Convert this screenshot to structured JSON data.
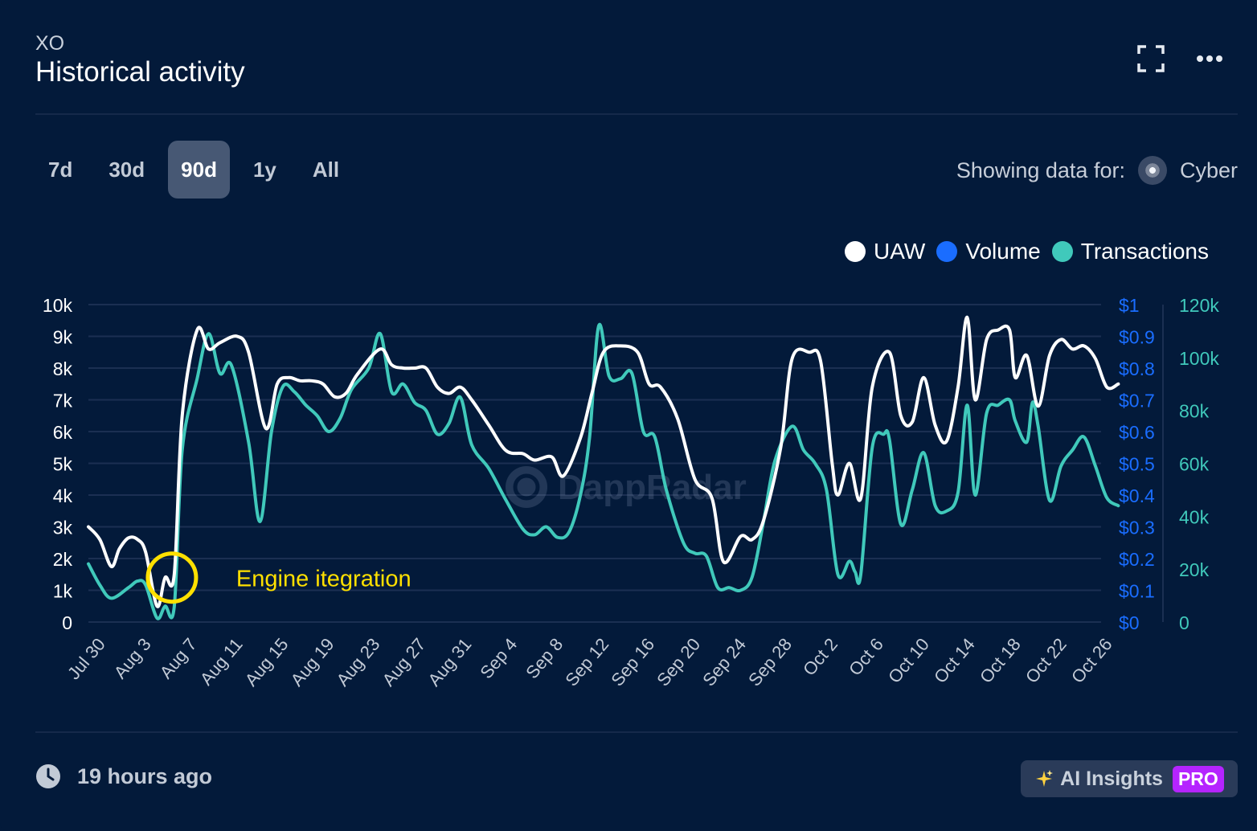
{
  "header": {
    "subtitle": "XO",
    "title": "Historical activity"
  },
  "icons": {
    "expand": "expand-icon",
    "more": "more-icon",
    "clock": "clock-icon",
    "sparkle": "sparkle-icon",
    "chain": "cyber-chain-icon"
  },
  "tabs": [
    "7d",
    "30d",
    "90d",
    "1y",
    "All"
  ],
  "active_tab": "90d",
  "showing": {
    "label": "Showing data for:",
    "chain": "Cyber"
  },
  "legend": [
    {
      "name": "UAW",
      "color": "#ffffff"
    },
    {
      "name": "Volume",
      "color": "#1a6dff"
    },
    {
      "name": "Transactions",
      "color": "#40c9bb"
    }
  ],
  "watermark": "DappRadar",
  "footer": {
    "updated": "19 hours ago",
    "ai_label": "AI Insights",
    "pro_badge": "PRO"
  },
  "chart_data": {
    "type": "line",
    "x_tick_labels": [
      "Jul 30",
      "Aug 3",
      "Aug 7",
      "Aug 11",
      "Aug 15",
      "Aug 19",
      "Aug 23",
      "Aug 27",
      "Aug 31",
      "Sep 4",
      "Sep 8",
      "Sep 12",
      "Sep 16",
      "Sep 20",
      "Sep 24",
      "Sep 28",
      "Oct 2",
      "Oct 6",
      "Oct 10",
      "Oct 14",
      "Oct 18",
      "Oct 22",
      "Oct 26"
    ],
    "x_range_days": [
      0,
      88.5
    ],
    "left_axis": {
      "ticks": [
        "0",
        "1k",
        "2k",
        "3k",
        "4k",
        "5k",
        "6k",
        "7k",
        "8k",
        "9k",
        "10k"
      ],
      "range": [
        0,
        10000
      ]
    },
    "right_axis_volume": {
      "ticks": [
        "$0",
        "$0.1",
        "$0.2",
        "$0.3",
        "$0.4",
        "$0.5",
        "$0.6",
        "$0.7",
        "$0.8",
        "$0.9",
        "$1"
      ],
      "range": [
        0,
        1
      ]
    },
    "right_axis_transactions": {
      "ticks": [
        "0",
        "20k",
        "40k",
        "60k",
        "80k",
        "100k",
        "120k"
      ],
      "range": [
        0,
        120000
      ]
    },
    "annotation": {
      "text": "Engine itegration",
      "at_day": 7.3,
      "at_value": 1400,
      "color": "#ffe000"
    },
    "series": [
      {
        "name": "UAW",
        "axis": "left",
        "color": "#ffffff",
        "points": [
          [
            0,
            3000
          ],
          [
            1,
            2600
          ],
          [
            2,
            1750
          ],
          [
            2.7,
            2300
          ],
          [
            3.5,
            2650
          ],
          [
            4.3,
            2600
          ],
          [
            5,
            2200
          ],
          [
            6,
            500
          ],
          [
            6.7,
            1400
          ],
          [
            7.5,
            1500
          ],
          [
            8.2,
            6500
          ],
          [
            9.5,
            9200
          ],
          [
            10.5,
            8600
          ],
          [
            11.5,
            8800
          ],
          [
            13,
            9000
          ],
          [
            14,
            8500
          ],
          [
            15.5,
            6100
          ],
          [
            16.5,
            7500
          ],
          [
            17.5,
            7700
          ],
          [
            18.5,
            7600
          ],
          [
            19.5,
            7600
          ],
          [
            20.5,
            7500
          ],
          [
            21.5,
            7100
          ],
          [
            22.5,
            7200
          ],
          [
            23.5,
            7800
          ],
          [
            25.5,
            8600
          ],
          [
            26.5,
            8100
          ],
          [
            27.5,
            8000
          ],
          [
            28.5,
            8000
          ],
          [
            29.5,
            8000
          ],
          [
            30.5,
            7400
          ],
          [
            31.5,
            7200
          ],
          [
            32.5,
            7400
          ],
          [
            33.5,
            7000
          ],
          [
            35,
            6200
          ],
          [
            36.5,
            5400
          ],
          [
            38,
            5300
          ],
          [
            39,
            5100
          ],
          [
            40.5,
            5200
          ],
          [
            41.5,
            4600
          ],
          [
            43,
            5800
          ],
          [
            44,
            7200
          ],
          [
            45,
            8500
          ],
          [
            46.5,
            8700
          ],
          [
            48,
            8500
          ],
          [
            49,
            7500
          ],
          [
            50,
            7400
          ],
          [
            51.5,
            6400
          ],
          [
            53,
            4500
          ],
          [
            54.5,
            3900
          ],
          [
            55.5,
            1900
          ],
          [
            57,
            2700
          ],
          [
            58,
            2600
          ],
          [
            59,
            3200
          ],
          [
            60.5,
            5500
          ],
          [
            61.5,
            8300
          ],
          [
            63,
            8500
          ],
          [
            64,
            8200
          ],
          [
            65,
            5000
          ],
          [
            65.5,
            4000
          ],
          [
            66.5,
            5000
          ],
          [
            67.5,
            3900
          ],
          [
            68.5,
            7400
          ],
          [
            70,
            8500
          ],
          [
            71,
            6500
          ],
          [
            72,
            6300
          ],
          [
            73,
            7700
          ],
          [
            74,
            6200
          ],
          [
            75,
            5700
          ],
          [
            76,
            7400
          ],
          [
            76.8,
            9600
          ],
          [
            77.5,
            7000
          ],
          [
            78.5,
            8900
          ],
          [
            79.5,
            9200
          ],
          [
            80.5,
            9200
          ],
          [
            81,
            7700
          ],
          [
            82,
            8400
          ],
          [
            83,
            6800
          ],
          [
            84,
            8400
          ],
          [
            85,
            8900
          ],
          [
            86,
            8600
          ],
          [
            87,
            8700
          ],
          [
            88,
            8300
          ],
          [
            89,
            7400
          ],
          [
            90,
            7500
          ]
        ]
      },
      {
        "name": "Transactions",
        "axis": "right_transactions",
        "color": "#40c9bb",
        "points": [
          [
            0,
            22000
          ],
          [
            1,
            14000
          ],
          [
            2,
            9000
          ],
          [
            3.5,
            13000
          ],
          [
            4.3,
            15500
          ],
          [
            5,
            14000
          ],
          [
            6,
            1500
          ],
          [
            6.7,
            6000
          ],
          [
            7.5,
            5800
          ],
          [
            8.2,
            65000
          ],
          [
            9.5,
            92000
          ],
          [
            10.5,
            109000
          ],
          [
            11.5,
            94000
          ],
          [
            12.5,
            97000
          ],
          [
            14,
            68000
          ],
          [
            15,
            38000
          ],
          [
            16,
            72000
          ],
          [
            17,
            89000
          ],
          [
            18,
            87000
          ],
          [
            19,
            82000
          ],
          [
            20,
            78000
          ],
          [
            21,
            72000
          ],
          [
            22,
            77000
          ],
          [
            23,
            88000
          ],
          [
            24.5,
            96000
          ],
          [
            25.5,
            109000
          ],
          [
            26.5,
            87000
          ],
          [
            27.5,
            90000
          ],
          [
            28.5,
            83000
          ],
          [
            29.5,
            80000
          ],
          [
            30.5,
            71000
          ],
          [
            31.5,
            75000
          ],
          [
            32.5,
            85000
          ],
          [
            33.5,
            67000
          ],
          [
            35,
            58000
          ],
          [
            36.5,
            46000
          ],
          [
            38,
            35000
          ],
          [
            39,
            33000
          ],
          [
            40,
            36000
          ],
          [
            41,
            32000
          ],
          [
            42,
            34000
          ],
          [
            43,
            48000
          ],
          [
            43.8,
            70000
          ],
          [
            44.6,
            112000
          ],
          [
            45.5,
            93000
          ],
          [
            46.5,
            92000
          ],
          [
            47.5,
            94000
          ],
          [
            48.5,
            72000
          ],
          [
            49.5,
            70000
          ],
          [
            50.5,
            50000
          ],
          [
            52,
            30000
          ],
          [
            53,
            26000
          ],
          [
            54,
            25000
          ],
          [
            55,
            13000
          ],
          [
            56,
            13000
          ],
          [
            57,
            12000
          ],
          [
            58,
            17000
          ],
          [
            59,
            38000
          ],
          [
            60,
            61000
          ],
          [
            61.5,
            74000
          ],
          [
            62.5,
            65000
          ],
          [
            63.5,
            60000
          ],
          [
            64.5,
            50000
          ],
          [
            65.5,
            18000
          ],
          [
            66.5,
            23000
          ],
          [
            67,
            19000
          ],
          [
            67.5,
            18000
          ],
          [
            68.5,
            66000
          ],
          [
            69.5,
            71000
          ],
          [
            70,
            69000
          ],
          [
            71,
            37000
          ],
          [
            72,
            50000
          ],
          [
            73,
            64000
          ],
          [
            74,
            44000
          ],
          [
            75,
            42000
          ],
          [
            76,
            49000
          ],
          [
            76.8,
            82000
          ],
          [
            77.5,
            48000
          ],
          [
            78.5,
            79000
          ],
          [
            79.5,
            82000
          ],
          [
            80.5,
            84000
          ],
          [
            81,
            76000
          ],
          [
            82,
            68000
          ],
          [
            82.5,
            83000
          ],
          [
            83,
            74000
          ],
          [
            84,
            46000
          ],
          [
            85,
            59000
          ],
          [
            86,
            65000
          ],
          [
            87,
            70000
          ],
          [
            88,
            59000
          ],
          [
            89,
            47000
          ],
          [
            90,
            44000
          ]
        ]
      }
    ]
  }
}
